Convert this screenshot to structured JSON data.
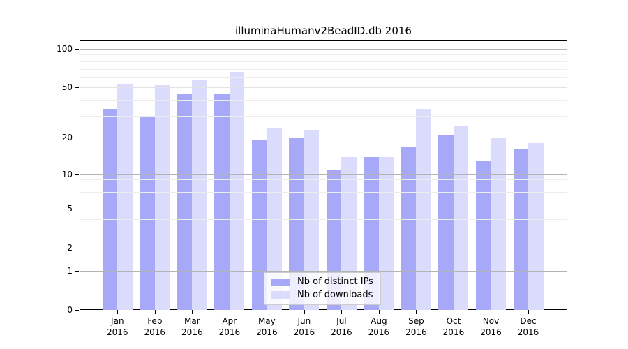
{
  "figure": {
    "title": "illuminaHumanv2BeadID.db 2016"
  },
  "chart_data": {
    "type": "bar",
    "title": "illuminaHumanv2BeadID.db 2016",
    "categories": [
      "Jan 2016",
      "Feb 2016",
      "Mar 2016",
      "Apr 2016",
      "May 2016",
      "Jun 2016",
      "Jul 2016",
      "Aug 2016",
      "Sep 2016",
      "Oct 2016",
      "Nov 2016",
      "Dec 2016"
    ],
    "month_labels": [
      "Jan",
      "Feb",
      "Mar",
      "Apr",
      "May",
      "Jun",
      "Jul",
      "Aug",
      "Sep",
      "Oct",
      "Nov",
      "Dec"
    ],
    "year_label": "2016",
    "series": [
      {
        "name": "Nb of distinct IPs",
        "color": "#a8a8f8",
        "values": [
          34,
          29,
          45,
          45,
          19,
          20,
          11,
          14,
          17,
          21,
          13,
          16
        ]
      },
      {
        "name": "Nb of downloads",
        "color": "#dbdbfc",
        "values": [
          53,
          52,
          57,
          66,
          24,
          23,
          14,
          14,
          34,
          25,
          20,
          18
        ]
      }
    ],
    "xlabel": "",
    "ylabel": "",
    "yscale": "log10(1+value)",
    "ylim": [
      0,
      117
    ],
    "ytick_values": [
      100,
      50,
      20,
      10,
      5,
      2,
      1,
      0
    ],
    "ytick_labels": [
      "100",
      "50",
      "20",
      "10",
      "5",
      "2",
      "1",
      "0"
    ],
    "major_gridline_values": [
      100,
      10,
      1
    ],
    "labeled_gridline_values": [
      50,
      20,
      5,
      2
    ],
    "minor_gridline_values": [
      3,
      4,
      6,
      7,
      8,
      9,
      30,
      40,
      60,
      70,
      80,
      90
    ],
    "grid": true,
    "legend_position": "bottom-center",
    "colors": {
      "ips_bar": "#a8a8f8",
      "downloads_bar": "#dbdbfc",
      "grid_major": "#b3b3b3",
      "grid_labeled": "#e2e2e2",
      "grid_minor": "#ececec",
      "axis": "#000000",
      "legend_border": "#cccccc"
    }
  }
}
